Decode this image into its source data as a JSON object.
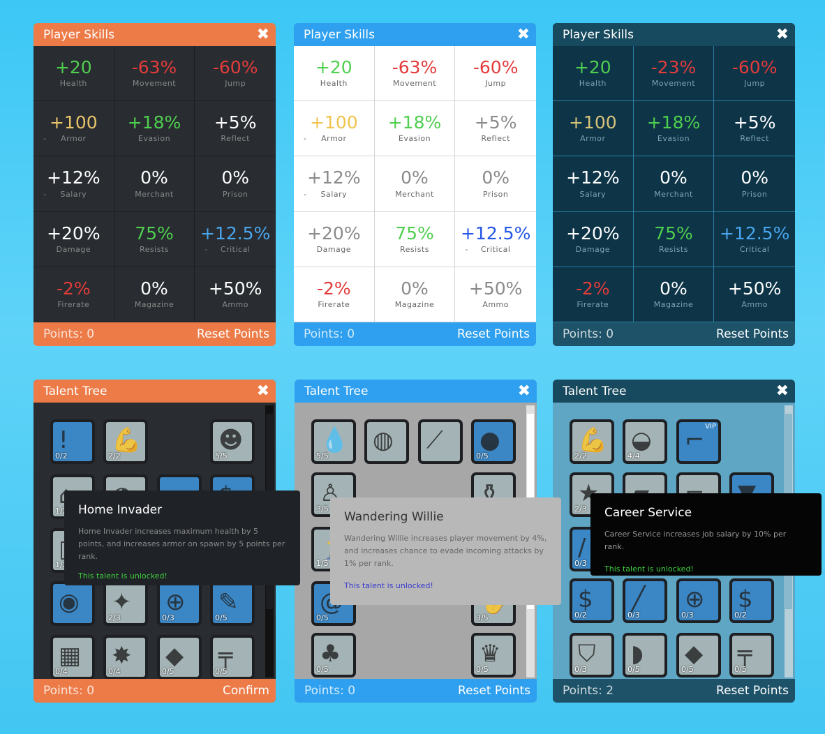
{
  "skill_panels": [
    {
      "title": "Player Skills",
      "points": "Points: 0",
      "action": "Reset Points",
      "cells": [
        {
          "value": "+20",
          "label": "Health",
          "color": "g"
        },
        {
          "value": "-63%",
          "label": "Movement",
          "color": "r"
        },
        {
          "value": "-60%",
          "label": "Jump",
          "color": "r"
        },
        {
          "value": "+100",
          "label": "Armor",
          "color": "y",
          "dash": "-"
        },
        {
          "value": "+18%",
          "label": "Evasion",
          "color": "g"
        },
        {
          "value": "+5%",
          "label": "Reflect",
          "color": "w"
        },
        {
          "value": "+12%",
          "label": "Salary",
          "color": "w",
          "dash": "-"
        },
        {
          "value": "0%",
          "label": "Merchant",
          "color": "w"
        },
        {
          "value": "0%",
          "label": "Prison",
          "color": "w"
        },
        {
          "value": "+20%",
          "label": "Damage",
          "color": "w"
        },
        {
          "value": "75%",
          "label": "Resists",
          "color": "g"
        },
        {
          "value": "+12.5%",
          "label": "Critical",
          "color": "b",
          "dash": "-"
        },
        {
          "value": "-2%",
          "label": "Firerate",
          "color": "r"
        },
        {
          "value": "0%",
          "label": "Magazine",
          "color": "w"
        },
        {
          "value": "+50%",
          "label": "Ammo",
          "color": "w"
        }
      ]
    },
    {
      "title": "Player Skills",
      "points": "Points: 0",
      "action": "Reset Points",
      "cells": [
        {
          "value": "+20",
          "label": "Health",
          "color": "g"
        },
        {
          "value": "-63%",
          "label": "Movement",
          "color": "r"
        },
        {
          "value": "-60%",
          "label": "Jump",
          "color": "r"
        },
        {
          "value": "+100",
          "label": "Armor",
          "color": "y",
          "dash": "-"
        },
        {
          "value": "+18%",
          "label": "Evasion",
          "color": "g"
        },
        {
          "value": "+5%",
          "label": "Reflect",
          "color": "w"
        },
        {
          "value": "+12%",
          "label": "Salary",
          "color": "w",
          "dash": "-"
        },
        {
          "value": "0%",
          "label": "Merchant",
          "color": "w"
        },
        {
          "value": "0%",
          "label": "Prison",
          "color": "w"
        },
        {
          "value": "+20%",
          "label": "Damage",
          "color": "w"
        },
        {
          "value": "75%",
          "label": "Resists",
          "color": "g"
        },
        {
          "value": "+12.5%",
          "label": "Critical",
          "color": "b",
          "dash": "-"
        },
        {
          "value": "-2%",
          "label": "Firerate",
          "color": "r"
        },
        {
          "value": "0%",
          "label": "Magazine",
          "color": "w"
        },
        {
          "value": "+50%",
          "label": "Ammo",
          "color": "w"
        }
      ]
    },
    {
      "title": "Player Skills",
      "points": "Points: 0",
      "action": "Reset Points",
      "cells": [
        {
          "value": "+20",
          "label": "Health",
          "color": "g"
        },
        {
          "value": "-23%",
          "label": "Movement",
          "color": "r"
        },
        {
          "value": "-60%",
          "label": "Jump",
          "color": "r"
        },
        {
          "value": "+100",
          "label": "Armor",
          "color": "y"
        },
        {
          "value": "+18%",
          "label": "Evasion",
          "color": "g"
        },
        {
          "value": "+5%",
          "label": "Reflect",
          "color": "w"
        },
        {
          "value": "+12%",
          "label": "Salary",
          "color": "w"
        },
        {
          "value": "0%",
          "label": "Merchant",
          "color": "w"
        },
        {
          "value": "0%",
          "label": "Prison",
          "color": "w"
        },
        {
          "value": "+20%",
          "label": "Damage",
          "color": "w"
        },
        {
          "value": "75%",
          "label": "Resists",
          "color": "g"
        },
        {
          "value": "+12.5%",
          "label": "Critical",
          "color": "b"
        },
        {
          "value": "-2%",
          "label": "Firerate",
          "color": "r"
        },
        {
          "value": "0%",
          "label": "Magazine",
          "color": "w"
        },
        {
          "value": "+50%",
          "label": "Ammo",
          "color": "w"
        }
      ]
    }
  ],
  "talent_panels": [
    {
      "title": "Talent Tree",
      "points": "Points: 0",
      "action": "Confirm",
      "tooltip": {
        "title": "Home Invader",
        "desc": "Home Invader increases maximum health by 5 points, and increases armor on spawn by 5 points per rank.",
        "unlocked": "This talent is unlocked!"
      },
      "icons": [
        {
          "name": "alert-group-icon",
          "count": "0/2",
          "tone": "blue",
          "glyph": "!"
        },
        {
          "name": "muscle-arm-icon",
          "count": "2/2",
          "tone": "grey",
          "glyph": "💪"
        },
        {
          "name": "masked-robber-icon",
          "count": "5/5",
          "tone": "grey",
          "glyph": "☻"
        },
        {
          "name": "house-thief-icon",
          "count": "1/2",
          "tone": "grey",
          "glyph": "⌂"
        },
        {
          "name": "bandana-face-icon",
          "count": "",
          "tone": "grey",
          "glyph": "◕"
        },
        {
          "name": "pistol-icon",
          "count": "",
          "tone": "blue",
          "glyph": "⌐"
        },
        {
          "name": "cash-stack-icon",
          "count": "",
          "tone": "blue",
          "glyph": "$"
        },
        {
          "name": "door-icon",
          "count": "1/2",
          "tone": "grey",
          "glyph": "▯"
        },
        {
          "name": "eye-target-icon",
          "count": "",
          "tone": "blue",
          "glyph": "◉"
        },
        {
          "name": "karate-kick-icon",
          "count": "2/3",
          "tone": "grey",
          "glyph": "✦"
        },
        {
          "name": "crosshair-icon",
          "count": "0/3",
          "tone": "blue",
          "glyph": "⊕"
        },
        {
          "name": "knife-attacker-icon",
          "count": "0/5",
          "tone": "blue",
          "glyph": "✎"
        },
        {
          "name": "brick-wall-runner-icon",
          "count": "0/4",
          "tone": "grey",
          "glyph": "▦"
        },
        {
          "name": "explosion-icon",
          "count": "0/4",
          "tone": "grey",
          "glyph": "✸"
        },
        {
          "name": "bullet-tag-icon",
          "count": "0/5",
          "tone": "grey",
          "glyph": "◆"
        },
        {
          "name": "assault-rifle-icon",
          "count": "0/5",
          "tone": "grey",
          "glyph": "╤"
        }
      ]
    },
    {
      "title": "Talent Tree",
      "points": "Points: 0",
      "action": "Reset Points",
      "tooltip": {
        "title": "Wandering Willie",
        "desc": "Wandering Willie increases player movement by 4%, and increases chance to evade incoming attacks by 1% per rank.",
        "unlocked": "This talent is unlocked!"
      },
      "icons": [
        {
          "name": "blood-drops-icon",
          "count": "5/5",
          "tone": "grey",
          "glyph": "💧"
        },
        {
          "name": "pill-face-icon",
          "count": "",
          "tone": "grey",
          "glyph": "◍"
        },
        {
          "name": "knife-icon",
          "count": "",
          "tone": "grey",
          "glyph": "⟋"
        },
        {
          "name": "stones-icon",
          "count": "0/5",
          "tone": "blue",
          "glyph": "●"
        },
        {
          "name": "hobo-bindle-icon",
          "count": "3/5",
          "tone": "grey",
          "glyph": "♙"
        },
        {
          "name": "bottles-icon",
          "count": "",
          "tone": "grey",
          "glyph": "⚱"
        },
        {
          "name": "runner-icon",
          "count": "1/5",
          "tone": "grey",
          "glyph": "🏃"
        },
        {
          "name": "spiral-icon",
          "count": "0/5",
          "tone": "blue",
          "glyph": "@"
        },
        {
          "name": "hand-icon",
          "count": "3/5",
          "tone": "grey",
          "glyph": "✋"
        },
        {
          "name": "clover-icon",
          "count": "0/5",
          "tone": "grey",
          "glyph": "♣"
        },
        {
          "name": "crown-icon",
          "count": "0/5",
          "tone": "grey",
          "glyph": "♛"
        }
      ]
    },
    {
      "title": "Talent Tree",
      "points": "Points: 2",
      "action": "Reset Points",
      "tooltip": {
        "title": "Career Service",
        "desc": "Career Service increases job salary by 10% per rank.",
        "unlocked": "This talent is unlocked!"
      },
      "icons": [
        {
          "name": "muscle-arm-icon",
          "count": "2/2",
          "tone": "grey",
          "glyph": "💪"
        },
        {
          "name": "police-cap-icon",
          "count": "4/4",
          "tone": "grey",
          "glyph": "◒"
        },
        {
          "name": "revolver-icon",
          "count": "",
          "tone": "blue",
          "glyph": "⌐",
          "vip": "VIP"
        },
        {
          "name": "police-badge-icon",
          "count": "2/3",
          "tone": "grey",
          "glyph": "★"
        },
        {
          "name": "bandage-icon",
          "count": "",
          "tone": "grey",
          "glyph": "▰"
        },
        {
          "name": "pistol-icon",
          "count": "",
          "tone": "grey",
          "glyph": "⌐"
        },
        {
          "name": "vest-icon",
          "count": "",
          "tone": "blue",
          "glyph": "▼"
        },
        {
          "name": "baton-icon",
          "count": "0/3",
          "tone": "blue",
          "glyph": "/"
        },
        {
          "name": "money-bullet-icon",
          "count": "0/2",
          "tone": "blue",
          "glyph": "$"
        },
        {
          "name": "nightstick-icon",
          "count": "0/3",
          "tone": "blue",
          "glyph": "╱"
        },
        {
          "name": "crosshair-badge-icon",
          "count": "0/3",
          "tone": "blue",
          "glyph": "⊕"
        },
        {
          "name": "cash-hand-icon",
          "count": "0/2",
          "tone": "blue",
          "glyph": "$"
        },
        {
          "name": "army-shield-icon",
          "count": "0/3",
          "tone": "grey",
          "glyph": "⛉"
        },
        {
          "name": "helmet-icon",
          "count": "0/5",
          "tone": "grey",
          "glyph": "◗"
        },
        {
          "name": "bullet-tag-icon",
          "count": "0/5",
          "tone": "grey",
          "glyph": "◆"
        },
        {
          "name": "assault-rifle-icon",
          "count": "0/5",
          "tone": "grey",
          "glyph": "╤"
        }
      ]
    }
  ],
  "close_glyph": "✖"
}
